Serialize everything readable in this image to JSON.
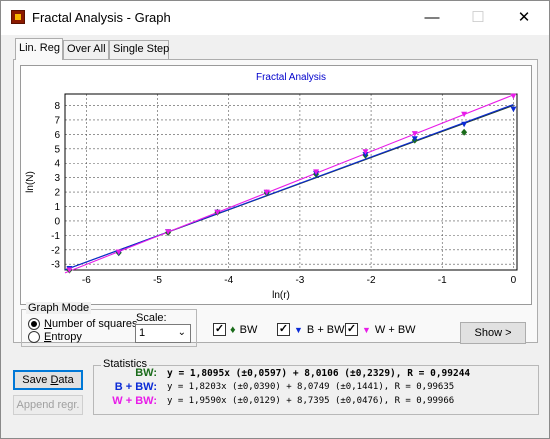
{
  "window": {
    "title": "Fractal Analysis - Graph",
    "minimize": "—",
    "maximize": "☐",
    "close": "✕"
  },
  "tabs": [
    {
      "label": "Lin. Reg",
      "active": true
    },
    {
      "label": "Over All",
      "active": false
    },
    {
      "label": "Single Step",
      "active": false
    }
  ],
  "colors": {
    "bw": "#1a6b1a",
    "b_bw": "#0b2bd6",
    "w_bw": "#e81ce8",
    "fit_bw": "#1f3a3a"
  },
  "chart_data": {
    "type": "scatter",
    "title": "Fractal Analysis",
    "xlabel": "ln(r)",
    "ylabel": "ln(N)",
    "xlim": [
      -6.3,
      0.05
    ],
    "ylim": [
      -3.4,
      8.8
    ],
    "xticks": [
      -6,
      -5,
      -4,
      -3,
      -2,
      -1,
      0
    ],
    "yticks": [
      -3,
      -2,
      -1,
      0,
      1,
      2,
      3,
      4,
      5,
      6,
      7,
      8
    ],
    "grid": true,
    "series": [
      {
        "name": "BW",
        "marker": "diamond",
        "color": "#1a6b1a",
        "x": [
          -6.238,
          -5.545,
          -4.852,
          -4.159,
          -3.466,
          -2.773,
          -2.079,
          -1.386,
          -0.693
        ],
        "y": [
          -3.4,
          -2.2,
          -0.8,
          0.6,
          1.95,
          3.25,
          4.55,
          5.6,
          6.15
        ]
      },
      {
        "name": "B + BW",
        "marker": "triangle-down",
        "color": "#0b2bd6",
        "x": [
          -6.238,
          -5.545,
          -4.852,
          -4.159,
          -3.466,
          -2.773,
          -2.079,
          -1.386,
          -0.693,
          0
        ],
        "y": [
          -3.3,
          -2.2,
          -0.75,
          0.6,
          1.95,
          3.3,
          4.6,
          5.7,
          6.7,
          7.75
        ]
      },
      {
        "name": "W + BW",
        "marker": "triangle-down",
        "color": "#e81ce8",
        "x": [
          -6.238,
          -5.545,
          -4.852,
          -4.159,
          -3.466,
          -2.773,
          -2.079,
          -1.386,
          -0.693,
          0
        ],
        "y": [
          -3.4,
          -2.15,
          -0.75,
          0.6,
          2.0,
          3.4,
          4.8,
          6.05,
          7.4,
          8.65
        ]
      }
    ],
    "fits": [
      {
        "name": "BW",
        "slope": 1.8095,
        "intercept": 8.0106,
        "color": "#1f3a3a"
      },
      {
        "name": "B + BW",
        "slope": 1.8203,
        "intercept": 8.0749,
        "color": "#0b2bd6"
      },
      {
        "name": "W + BW",
        "slope": 1.959,
        "intercept": 8.7395,
        "color": "#e81ce8"
      }
    ]
  },
  "graph_mode": {
    "label": "Graph Mode",
    "opt1_prefix": "N",
    "opt1_rest": "umber of squares",
    "opt1_selected": true,
    "opt2_prefix": "E",
    "opt2_rest": "ntropy",
    "opt2_selected": false
  },
  "scale": {
    "label": "Scale:",
    "value": "1"
  },
  "checks": [
    {
      "label": "BW",
      "glyph": "♦",
      "checked": true,
      "color": "#1a6b1a"
    },
    {
      "label": "B + BW",
      "glyph": "▼",
      "checked": true,
      "color": "#0b2bd6"
    },
    {
      "label": "W + BW",
      "glyph": "▼",
      "checked": true,
      "color": "#e81ce8"
    }
  ],
  "check_mark": "✓",
  "show_button": "Show >",
  "save_button": {
    "prefix": "Save ",
    "mnemonic": "D",
    "rest": "ata"
  },
  "append_button": "Append regr.",
  "statistics": {
    "label": "Statistics",
    "rows": [
      {
        "label": "BW:",
        "equation": "y = 1,8095x (±0,0597) +  8,0106 (±0,2329), R = 0,99244"
      },
      {
        "label": "B + BW:",
        "equation": "y = 1,8203x (±0,0390) +  8,0749 (±0,1441), R = 0,99635"
      },
      {
        "label": "W + BW:",
        "equation": "y = 1,9590x (±0,0129) +  8,7395 (±0,0476), R = 0,99966"
      }
    ]
  }
}
